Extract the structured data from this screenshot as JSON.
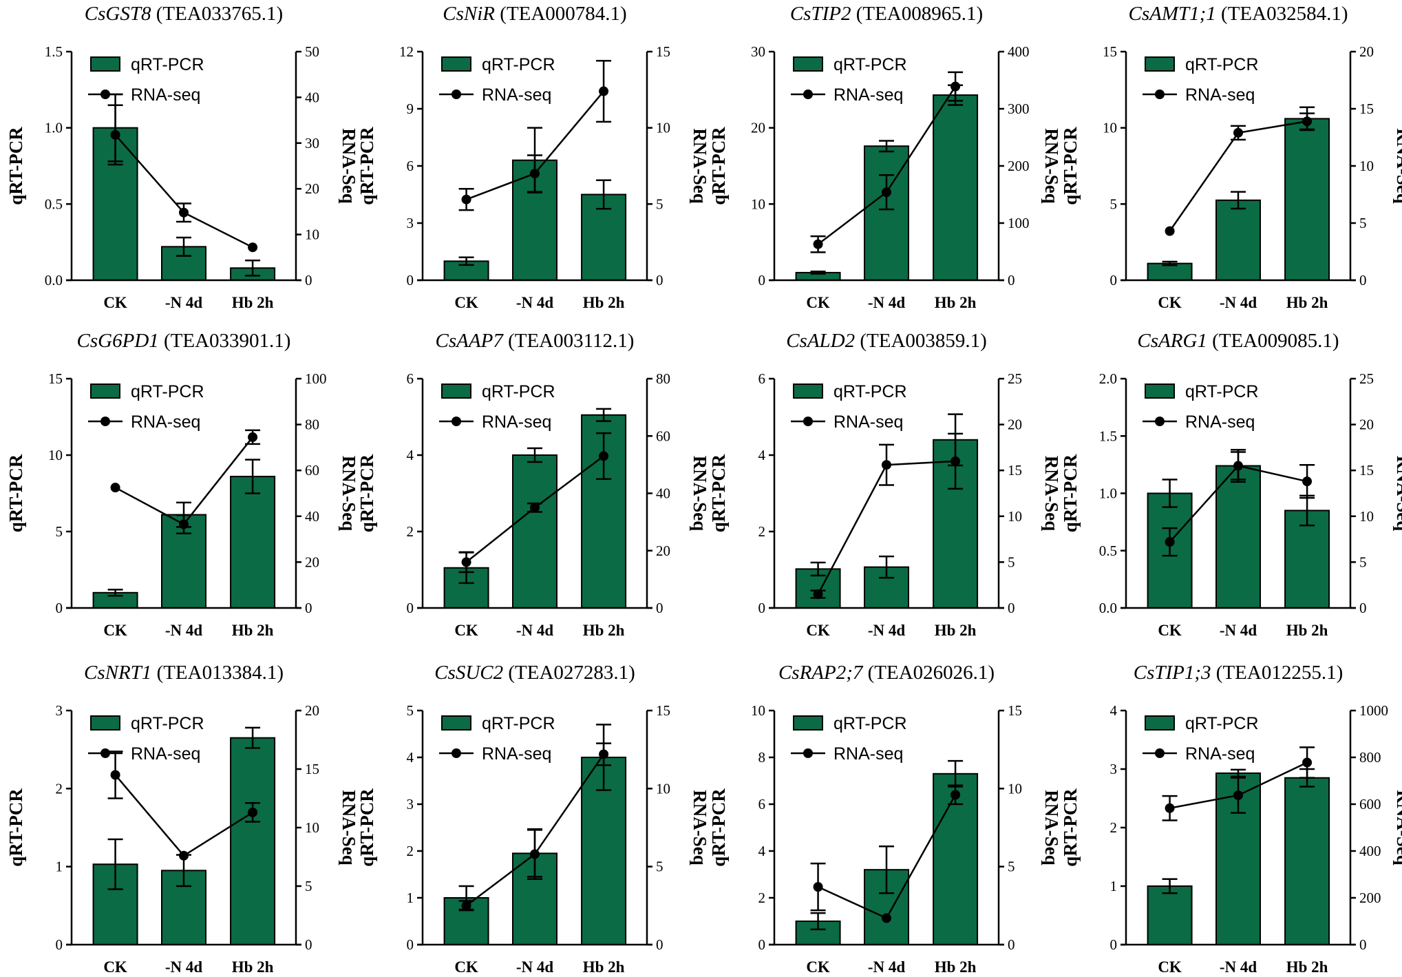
{
  "figure": {
    "colors": {
      "bar": "#0b6b45",
      "bar_edge": "#000000",
      "line": "#000000",
      "axis": "#000000"
    }
  },
  "chart_data": [
    {
      "type": "bar+line",
      "title_gene": "CsGST8",
      "title_id": "(TEA033765.1)",
      "categories": [
        "CK",
        "-N 4d",
        "Hb 2h"
      ],
      "series": [
        {
          "name": "qRT-PCR",
          "kind": "bar",
          "axis": "left",
          "values": [
            1.0,
            0.22,
            0.08
          ],
          "errors": [
            0.22,
            0.06,
            0.05
          ]
        },
        {
          "name": "RNA-seq",
          "kind": "line",
          "axis": "right",
          "values": [
            31.8,
            14.8,
            7.2
          ],
          "errors": [
            6.5,
            2.0,
            0
          ]
        }
      ],
      "ylabel_left": "qRT-PCR",
      "ylabel_right": "RNA-Seq",
      "ylim_left": [
        0,
        1.5
      ],
      "ylim_right": [
        0,
        50
      ],
      "yticks_left": [
        "0.0",
        "0.5",
        "1.0",
        "1.5"
      ],
      "yticks_right": [
        "0",
        "10",
        "20",
        "30",
        "40",
        "50"
      ]
    },
    {
      "type": "bar+line",
      "title_gene": "CsNiR",
      "title_id": "(TEA000784.1)",
      "categories": [
        "CK",
        "-N 4d",
        "Hb 2h"
      ],
      "series": [
        {
          "name": "qRT-PCR",
          "kind": "bar",
          "axis": "left",
          "values": [
            1.0,
            6.3,
            4.5
          ],
          "errors": [
            0.2,
            1.7,
            0.75
          ]
        },
        {
          "name": "RNA-seq",
          "kind": "line",
          "axis": "right",
          "values": [
            5.3,
            7.0,
            12.4
          ],
          "errors": [
            0.7,
            1.2,
            2.0
          ]
        }
      ],
      "ylabel_left": "qRT-PCR",
      "ylabel_right": "RNA-Seq",
      "ylim_left": [
        0,
        12
      ],
      "ylim_right": [
        0,
        15
      ],
      "yticks_left": [
        "0",
        "3",
        "6",
        "9",
        "12"
      ],
      "yticks_right": [
        "0",
        "5",
        "10",
        "15"
      ]
    },
    {
      "type": "bar+line",
      "title_gene": "CsTIP2",
      "title_id": "(TEA008965.1)",
      "categories": [
        "CK",
        "-N 4d",
        "Hb 2h"
      ],
      "series": [
        {
          "name": "qRT-PCR",
          "kind": "bar",
          "axis": "left",
          "values": [
            1.0,
            17.6,
            24.3
          ],
          "errors": [
            0.15,
            0.7,
            1.3
          ]
        },
        {
          "name": "RNA-seq",
          "kind": "line",
          "axis": "right",
          "values": [
            63,
            154,
            339
          ],
          "errors": [
            14,
            30,
            25
          ]
        }
      ],
      "ylabel_left": "qRT-PCR",
      "ylabel_right": "RNA-Seq",
      "ylim_left": [
        0,
        30
      ],
      "ylim_right": [
        0,
        400
      ],
      "yticks_left": [
        "0",
        "10",
        "20",
        "30"
      ],
      "yticks_right": [
        "0",
        "100",
        "200",
        "300",
        "400"
      ]
    },
    {
      "type": "bar+line",
      "title_gene": "CsAMT1;1",
      "title_id": "(TEA032584.1)",
      "categories": [
        "CK",
        "-N 4d",
        "Hb 2h"
      ],
      "series": [
        {
          "name": "qRT-PCR",
          "kind": "bar",
          "axis": "left",
          "values": [
            1.1,
            5.25,
            10.6
          ],
          "errors": [
            0.12,
            0.55,
            0.75
          ]
        },
        {
          "name": "RNA-seq",
          "kind": "line",
          "axis": "right",
          "values": [
            4.3,
            12.9,
            13.9
          ],
          "errors": [
            0,
            0.6,
            0.7
          ]
        }
      ],
      "ylabel_left": "qRT-PCR",
      "ylabel_right": "RNA-Seq",
      "ylim_left": [
        0,
        15
      ],
      "ylim_right": [
        0,
        20
      ],
      "yticks_left": [
        "0",
        "5",
        "10",
        "15"
      ],
      "yticks_right": [
        "0",
        "5",
        "10",
        "15",
        "20"
      ]
    },
    {
      "type": "bar+line",
      "title_gene": "CsG6PD1",
      "title_id": "(TEA033901.1)",
      "categories": [
        "CK",
        "-N 4d",
        "Hb 2h"
      ],
      "series": [
        {
          "name": "qRT-PCR",
          "kind": "bar",
          "axis": "left",
          "values": [
            1.0,
            6.1,
            8.6
          ],
          "errors": [
            0.2,
            0.8,
            1.1
          ]
        },
        {
          "name": "RNA-seq",
          "kind": "line",
          "axis": "right",
          "values": [
            52.5,
            36.5,
            74.5
          ],
          "errors": [
            0,
            4.0,
            3.0
          ]
        }
      ],
      "ylabel_left": "qRT-PCR",
      "ylabel_right": "RNA-Seq",
      "ylim_left": [
        0,
        15
      ],
      "ylim_right": [
        0,
        100
      ],
      "yticks_left": [
        "0",
        "5",
        "10",
        "15"
      ],
      "yticks_right": [
        "0",
        "20",
        "40",
        "60",
        "80",
        "100"
      ]
    },
    {
      "type": "bar+line",
      "title_gene": "CsAAP7",
      "title_id": "(TEA003112.1)",
      "categories": [
        "CK",
        "-N 4d",
        "Hb 2h"
      ],
      "series": [
        {
          "name": "qRT-PCR",
          "kind": "bar",
          "axis": "left",
          "values": [
            1.05,
            4.0,
            5.05
          ],
          "errors": [
            0.4,
            0.18,
            0.16
          ]
        },
        {
          "name": "RNA-seq",
          "kind": "line",
          "axis": "right",
          "values": [
            16,
            35,
            53
          ],
          "errors": [
            3.5,
            1.5,
            8.0
          ]
        }
      ],
      "ylabel_left": "qRT-PCR",
      "ylabel_right": "RNA-Seq",
      "ylim_left": [
        0,
        6
      ],
      "ylim_right": [
        0,
        80
      ],
      "yticks_left": [
        "0",
        "2",
        "4",
        "6"
      ],
      "yticks_right": [
        "0",
        "20",
        "40",
        "60",
        "80"
      ]
    },
    {
      "type": "bar+line",
      "title_gene": "CsALD2",
      "title_id": "(TEA003859.1)",
      "categories": [
        "CK",
        "-N 4d",
        "Hb 2h"
      ],
      "series": [
        {
          "name": "qRT-PCR",
          "kind": "bar",
          "axis": "left",
          "values": [
            1.02,
            1.07,
            4.4
          ],
          "errors": [
            0.17,
            0.28,
            0.67
          ]
        },
        {
          "name": "RNA-seq",
          "kind": "line",
          "axis": "right",
          "values": [
            1.5,
            15.6,
            16.0
          ],
          "errors": [
            0.4,
            2.2,
            3.0
          ]
        }
      ],
      "ylabel_left": "qRT-PCR",
      "ylabel_right": "RNA-Seq",
      "ylim_left": [
        0,
        6
      ],
      "ylim_right": [
        0,
        25
      ],
      "yticks_left": [
        "0",
        "2",
        "4",
        "6"
      ],
      "yticks_right": [
        "0",
        "5",
        "10",
        "15",
        "20",
        "25"
      ]
    },
    {
      "type": "bar+line",
      "title_gene": "CsARG1",
      "title_id": "(TEA009085.1)",
      "categories": [
        "CK",
        "-N 4d",
        "Hb 2h"
      ],
      "series": [
        {
          "name": "qRT-PCR",
          "kind": "bar",
          "axis": "left",
          "values": [
            1.0,
            1.24,
            0.85
          ],
          "errors": [
            0.12,
            0.14,
            0.13
          ]
        },
        {
          "name": "RNA-seq",
          "kind": "line",
          "axis": "right",
          "values": [
            7.2,
            15.5,
            13.8
          ],
          "errors": [
            1.5,
            1.5,
            1.8
          ]
        }
      ],
      "ylabel_left": "qRT-PCR",
      "ylabel_right": "RNA-Seq",
      "ylim_left": [
        0,
        2
      ],
      "ylim_right": [
        0,
        25
      ],
      "yticks_left": [
        "0.0",
        "0.5",
        "1.0",
        "1.5",
        "2.0"
      ],
      "yticks_right": [
        "0",
        "5",
        "10",
        "15",
        "20",
        "25"
      ]
    },
    {
      "type": "bar+line",
      "title_gene": "CsNRT1",
      "title_id": "(TEA013384.1)",
      "categories": [
        "CK",
        "-N 4d",
        "Hb 2h"
      ],
      "series": [
        {
          "name": "qRT-PCR",
          "kind": "bar",
          "axis": "left",
          "values": [
            1.03,
            0.95,
            2.65
          ],
          "errors": [
            0.32,
            0.2,
            0.13
          ]
        },
        {
          "name": "RNA-seq",
          "kind": "line",
          "axis": "right",
          "values": [
            14.5,
            7.6,
            11.3
          ],
          "errors": [
            2.0,
            0,
            0.8
          ]
        }
      ],
      "ylabel_left": "qRT-PCR",
      "ylabel_right": "RNA-Seq",
      "ylim_left": [
        0,
        3
      ],
      "ylim_right": [
        0,
        20
      ],
      "yticks_left": [
        "0",
        "1",
        "2",
        "3"
      ],
      "yticks_right": [
        "0",
        "5",
        "10",
        "15",
        "20"
      ]
    },
    {
      "type": "bar+line",
      "title_gene": "CsSUC2",
      "title_id": "(TEA027283.1)",
      "categories": [
        "CK",
        "-N 4d",
        "Hb 2h"
      ],
      "series": [
        {
          "name": "qRT-PCR",
          "kind": "bar",
          "axis": "left",
          "values": [
            1.0,
            1.95,
            4.0
          ],
          "errors": [
            0.25,
            0.5,
            0.7
          ]
        },
        {
          "name": "RNA-seq",
          "kind": "line",
          "axis": "right",
          "values": [
            2.5,
            5.8,
            12.2
          ],
          "errors": [
            0.3,
            1.6,
            0.7
          ]
        }
      ],
      "ylabel_left": "qRT-PCR",
      "ylabel_right": "RNA-Seq",
      "ylim_left": [
        0,
        5
      ],
      "ylim_right": [
        0,
        15
      ],
      "yticks_left": [
        "0",
        "1",
        "2",
        "3",
        "4",
        "5"
      ],
      "yticks_right": [
        "0",
        "5",
        "10",
        "15"
      ]
    },
    {
      "type": "bar+line",
      "title_gene": "CsRAP2;7",
      "title_id": "(TEA026026.1)",
      "categories": [
        "CK",
        "-N 4d",
        "Hb 2h"
      ],
      "series": [
        {
          "name": "qRT-PCR",
          "kind": "bar",
          "axis": "left",
          "values": [
            1.0,
            3.2,
            7.3
          ],
          "errors": [
            0.35,
            1.0,
            0.55
          ]
        },
        {
          "name": "RNA-seq",
          "kind": "line",
          "axis": "right",
          "values": [
            3.7,
            1.7,
            9.6
          ],
          "errors": [
            1.5,
            0,
            0.6
          ]
        }
      ],
      "ylabel_left": "qRT-PCR",
      "ylabel_right": "RNA-Seq",
      "ylim_left": [
        0,
        10
      ],
      "ylim_right": [
        0,
        15
      ],
      "yticks_left": [
        "0",
        "2",
        "4",
        "6",
        "8",
        "10"
      ],
      "yticks_right": [
        "0",
        "5",
        "10",
        "15"
      ]
    },
    {
      "type": "bar+line",
      "title_gene": "CsTIP1;3",
      "title_id": "(TEA012255.1)",
      "categories": [
        "CK",
        "-N 4d",
        "Hb 2h"
      ],
      "series": [
        {
          "name": "qRT-PCR",
          "kind": "bar",
          "axis": "left",
          "values": [
            1.0,
            2.93,
            2.85
          ],
          "errors": [
            0.12,
            0.06,
            0.15
          ]
        },
        {
          "name": "RNA-seq",
          "kind": "line",
          "axis": "right",
          "values": [
            583,
            638,
            778
          ],
          "errors": [
            52,
            75,
            65
          ]
        }
      ],
      "ylabel_left": "qRT-PCR",
      "ylabel_right": "RNA-Seq",
      "ylim_left": [
        0,
        4
      ],
      "ylim_right": [
        0,
        1000
      ],
      "yticks_left": [
        "0",
        "1",
        "2",
        "3",
        "4"
      ],
      "yticks_right": [
        "0",
        "200",
        "400",
        "600",
        "800",
        "1000"
      ]
    }
  ]
}
